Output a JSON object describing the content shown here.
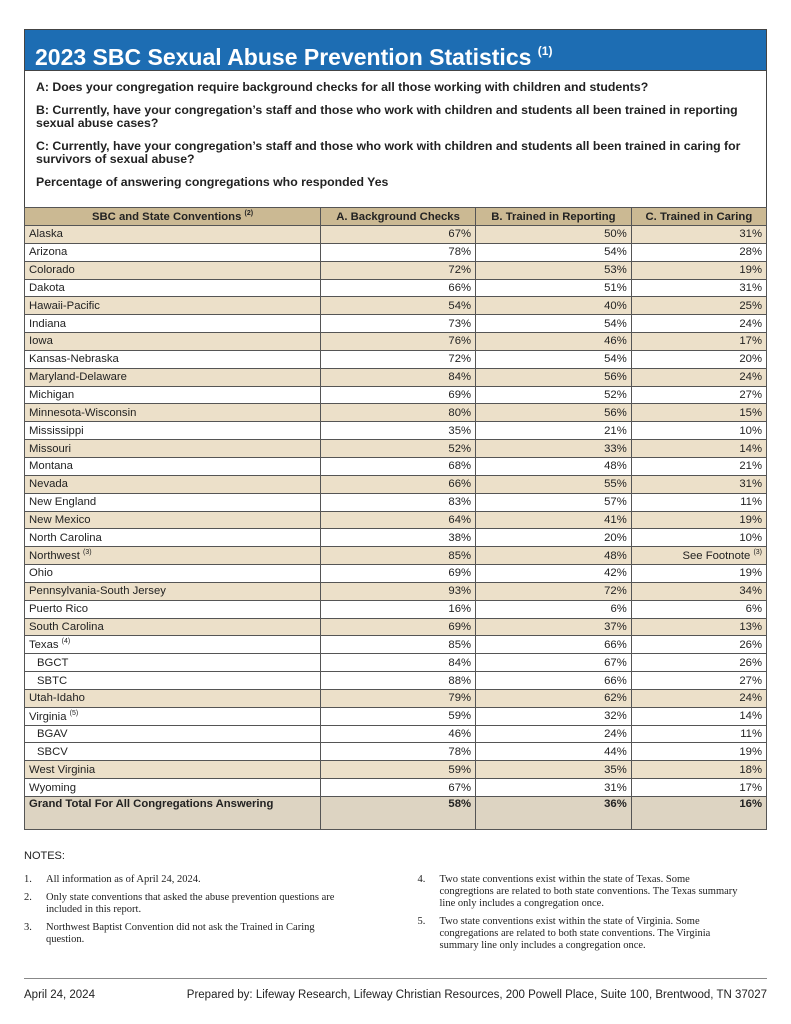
{
  "title": {
    "text": "2023 SBC Sexual Abuse Prevention Statistics",
    "note": "(1)"
  },
  "questions": [
    "A: Does your congregation require background checks for all those working with children and students?",
    "B: Currently, have your congregation’s staff and those who work with children and students all been trained in reporting sexual abuse cases?",
    "C: Currently, have your congregation’s staff and those who work with children and students all been trained in caring for survivors of sexual abuse?",
    "Percentage of answering congregations who responded Yes"
  ],
  "table": {
    "header": [
      {
        "text": "SBC and State Conventions",
        "note": "(2)"
      },
      {
        "text": "A. Background Checks"
      },
      {
        "text": "B. Trained in Reporting"
      },
      {
        "text": "C. Trained in Caring"
      }
    ],
    "rows": [
      {
        "name": "Alaska",
        "values": [
          "67%",
          "50%",
          "31%"
        ]
      },
      {
        "name": "Arizona",
        "values": [
          "78%",
          "54%",
          "28%"
        ]
      },
      {
        "name": "Colorado",
        "values": [
          "72%",
          "53%",
          "19%"
        ]
      },
      {
        "name": "Dakota",
        "values": [
          "66%",
          "51%",
          "31%"
        ]
      },
      {
        "name": "Hawaii-Pacific",
        "values": [
          "54%",
          "40%",
          "25%"
        ]
      },
      {
        "name": "Indiana",
        "values": [
          "73%",
          "54%",
          "24%"
        ]
      },
      {
        "name": "Iowa",
        "values": [
          "76%",
          "46%",
          "17%"
        ]
      },
      {
        "name": "Kansas-Nebraska",
        "values": [
          "72%",
          "54%",
          "20%"
        ]
      },
      {
        "name": "Maryland-Delaware",
        "values": [
          "84%",
          "56%",
          "24%"
        ]
      },
      {
        "name": "Michigan",
        "values": [
          "69%",
          "52%",
          "27%"
        ]
      },
      {
        "name": "Minnesota-Wisconsin",
        "values": [
          "80%",
          "56%",
          "15%"
        ]
      },
      {
        "name": "Mississippi",
        "values": [
          "35%",
          "21%",
          "10%"
        ]
      },
      {
        "name": "Missouri",
        "values": [
          "52%",
          "33%",
          "14%"
        ]
      },
      {
        "name": "Montana",
        "values": [
          "68%",
          "48%",
          "21%"
        ]
      },
      {
        "name": "Nevada",
        "values": [
          "66%",
          "55%",
          "31%"
        ]
      },
      {
        "name": "New England",
        "values": [
          "83%",
          "57%",
          "11%"
        ]
      },
      {
        "name": "New Mexico",
        "values": [
          "64%",
          "41%",
          "19%"
        ]
      },
      {
        "name": "North Carolina",
        "values": [
          "38%",
          "20%",
          "10%"
        ]
      },
      {
        "name": "Northwest",
        "note": "(3)",
        "values": [
          "85%",
          "48%",
          {
            "text": "See Footnote",
            "note": "(3)"
          }
        ]
      },
      {
        "name": "Ohio",
        "values": [
          "69%",
          "42%",
          "19%"
        ]
      },
      {
        "name": "Pennsylvania-South Jersey",
        "values": [
          "93%",
          "72%",
          "34%"
        ]
      },
      {
        "name": "Puerto Rico",
        "values": [
          "16%",
          "6%",
          "6%"
        ]
      },
      {
        "name": "South Carolina",
        "values": [
          "69%",
          "37%",
          "13%"
        ]
      },
      {
        "name": "Texas",
        "note": "(4)",
        "values": [
          "85%",
          "66%",
          "26%"
        ],
        "subrows": [
          {
            "name": "BGCT",
            "values": [
              "84%",
              "67%",
              "26%"
            ]
          },
          {
            "name": "SBTC",
            "values": [
              "88%",
              "66%",
              "27%"
            ]
          }
        ]
      },
      {
        "name": "Utah-Idaho",
        "values": [
          "79%",
          "62%",
          "24%"
        ]
      },
      {
        "name": "Virginia",
        "note": "(5)",
        "values": [
          "59%",
          "32%",
          "14%"
        ],
        "subrows": [
          {
            "name": "BGAV",
            "values": [
              "46%",
              "24%",
              "11%"
            ]
          },
          {
            "name": "SBCV",
            "values": [
              "78%",
              "44%",
              "19%"
            ]
          }
        ]
      },
      {
        "name": "West Virginia",
        "values": [
          "59%",
          "35%",
          "18%"
        ]
      },
      {
        "name": "Wyoming",
        "values": [
          "67%",
          "31%",
          "17%"
        ]
      }
    ],
    "total": {
      "name": "Grand Total For All Congregations Answering",
      "values": [
        "58%",
        "36%",
        "16%"
      ]
    }
  },
  "notes": {
    "heading": "NOTES:",
    "items": [
      {
        "number": "1.",
        "text": "All information as of April 24, 2024."
      },
      {
        "number": "2.",
        "text": "Only state conventions that asked the abuse prevention questions are included in this report."
      },
      {
        "number": "3.",
        "text": "Northwest Baptist Convention did not ask the Trained in Caring question."
      },
      {
        "number": "4.",
        "text": "Two state conventions exist within the state of Texas. Some congregtions are related to both state conventions. The Texas summary line only includes a congregation once."
      },
      {
        "number": "5.",
        "text": "Two state conventions exist within the state of Virginia. Some congregations are related to both state conventions. The Virginia summary line only includes a congregation once."
      }
    ]
  },
  "footer": {
    "date": "April 24, 2024",
    "credit": "Prepared by: Lifeway Research, Lifeway Christian Resources, 200 Powell Place, Suite 100, Brentwood, TN 37027"
  }
}
